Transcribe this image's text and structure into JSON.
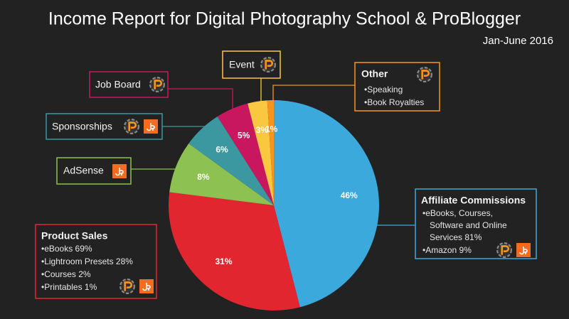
{
  "chart_data": {
    "type": "pie",
    "title": "Income Report for Digital Photography School & ProBlogger",
    "subtitle": "Jan-June 2016",
    "categories": [
      "Affiliate Commissions",
      "Product Sales",
      "AdSense",
      "Sponsorships",
      "Job Board",
      "Event",
      "Other"
    ],
    "values": [
      46,
      31,
      8,
      6,
      5,
      3,
      1
    ],
    "value_labels": [
      "46%",
      "31%",
      "8%",
      "6%",
      "5%",
      "3%",
      "1%"
    ],
    "colors": [
      "#3ba9dc",
      "#e2262f",
      "#8dc253",
      "#3b98a0",
      "#c8175e",
      "#f9c840",
      "#f7941d"
    ],
    "details": [
      [
        "•eBooks, Courses,",
        "Software and Online",
        "Services 81%",
        "•Amazon 9%"
      ],
      [
        "•eBooks 69%",
        "•Lightroom Presets 28%",
        "•Courses 2%",
        "•Printables 1%"
      ],
      [],
      [],
      [],
      [],
      [
        "•Speaking",
        "•Book Royalties"
      ]
    ]
  }
}
